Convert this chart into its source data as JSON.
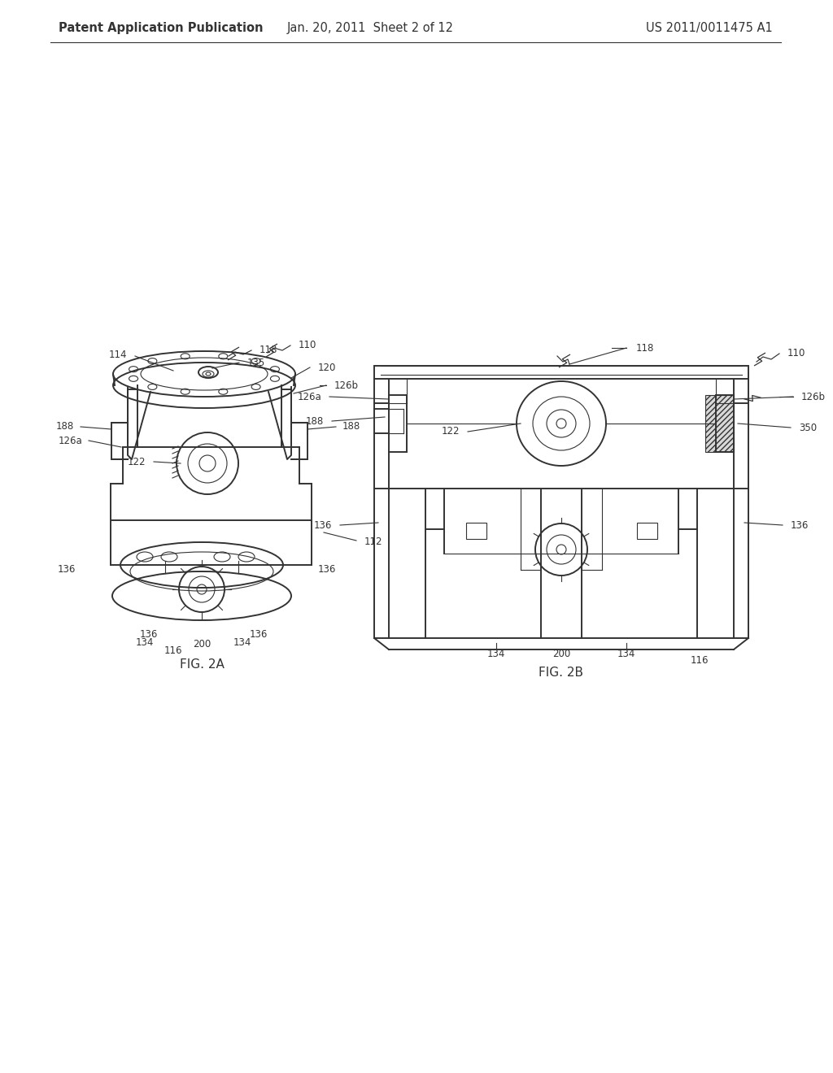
{
  "background_color": "#ffffff",
  "header_left": "Patent Application Publication",
  "header_center": "Jan. 20, 2011  Sheet 2 of 12",
  "header_right": "US 2011/0011475 A1",
  "line_color": "#333333",
  "label_fontsize": 8.5,
  "fig2a_label": "FIG. 2A",
  "fig2b_label": "FIG. 2B",
  "fig_label_fontsize": 11
}
